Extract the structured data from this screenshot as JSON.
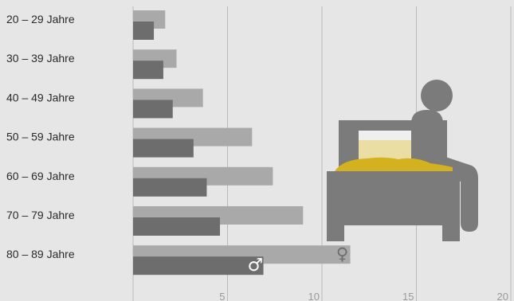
{
  "chart_data": {
    "type": "bar",
    "orientation": "horizontal",
    "categories": [
      "20 – 29 Jahre",
      "30 – 39 Jahre",
      "40 – 49 Jahre",
      "50 – 59 Jahre",
      "60 – 69 Jahre",
      "70 – 79 Jahre",
      "80 – 89 Jahre"
    ],
    "series": [
      {
        "symbol": "♀",
        "color": "#a9a9a9",
        "values": [
          1.7,
          2.3,
          3.7,
          6.3,
          7.4,
          9.0,
          11.5
        ]
      },
      {
        "symbol": "♂",
        "color": "#6d6d6d",
        "values": [
          1.1,
          1.6,
          2.1,
          3.2,
          3.9,
          4.6,
          6.9
        ]
      }
    ],
    "x_ticks": [
      "5",
      "10",
      "15",
      "20"
    ],
    "xlim": [
      0,
      20
    ],
    "grid": true,
    "colors": {
      "background": "#e6e6e6",
      "gridline": "#b9b9b9",
      "illustration": "#7b7b7b",
      "pillow": "#efefef",
      "blanket": "#d4b21f"
    },
    "icons": [
      "female-symbol-icon",
      "male-symbol-icon",
      "patient-in-bed-icon"
    ]
  }
}
